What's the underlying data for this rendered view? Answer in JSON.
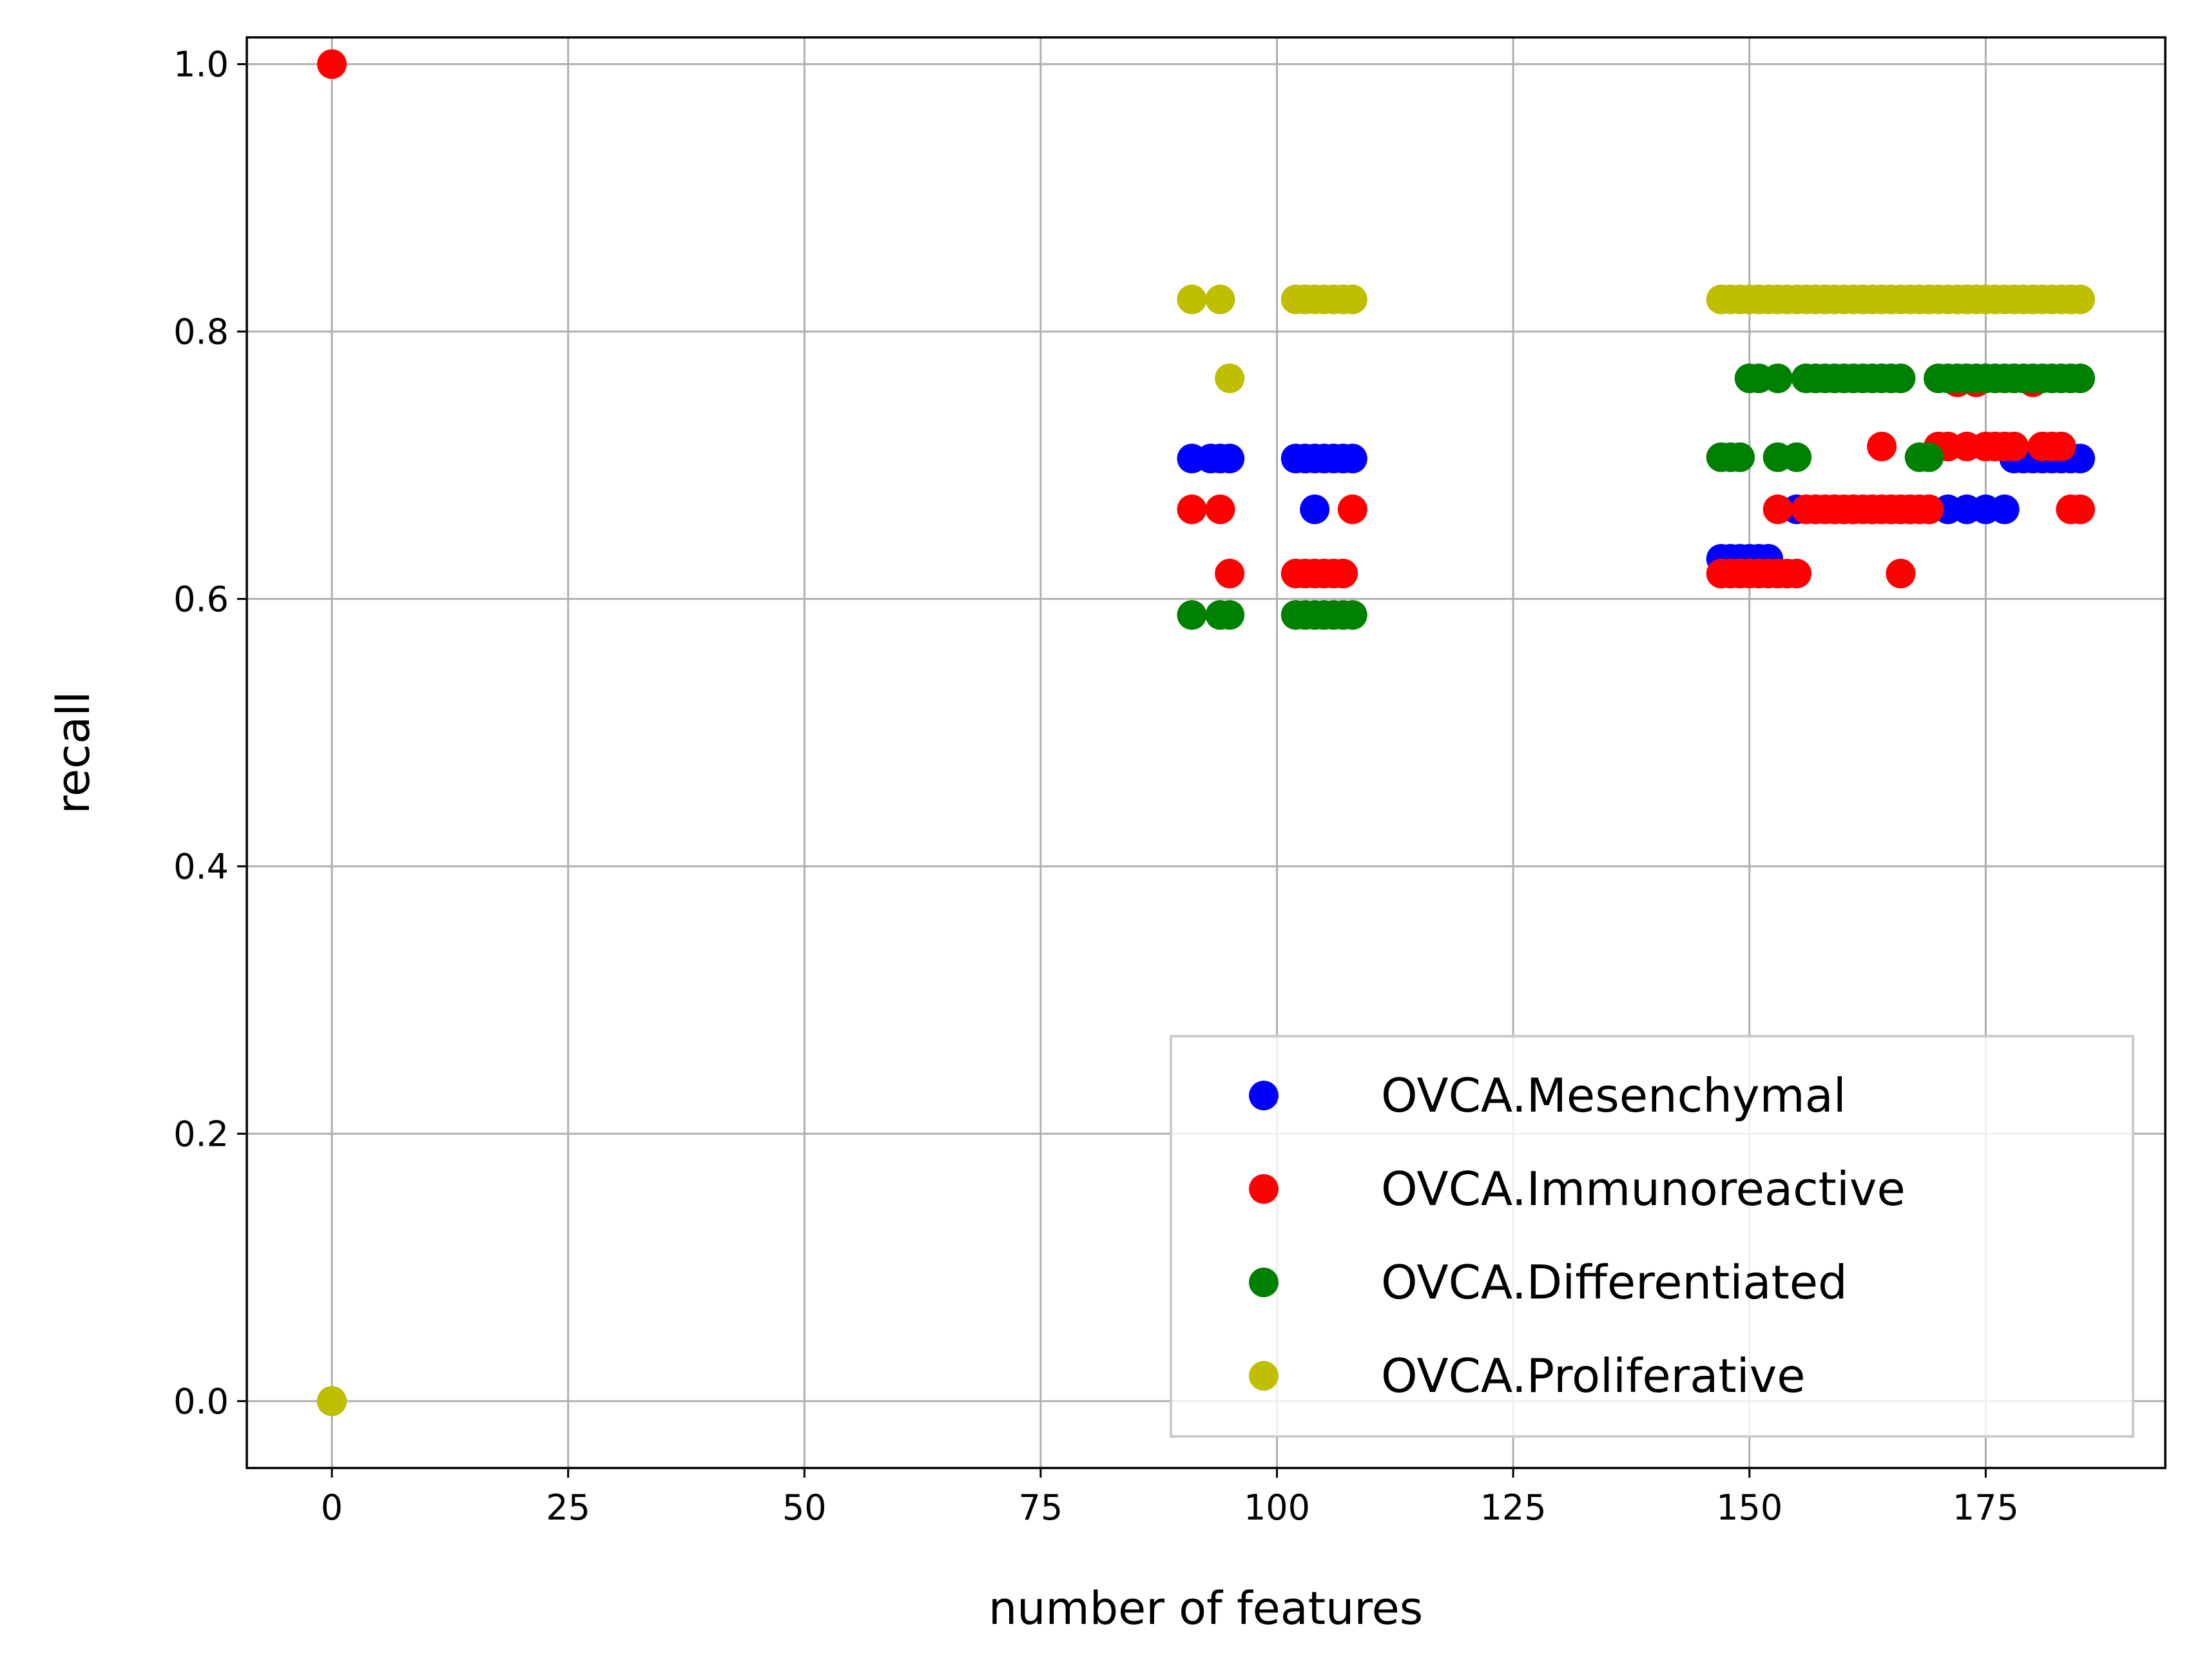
{
  "chart_data": {
    "type": "scatter",
    "title": "",
    "xlabel": "number of features",
    "ylabel": "recall",
    "xlim": [
      -9,
      194
    ],
    "ylim": [
      -0.05,
      1.02
    ],
    "xticks": [
      0,
      25,
      50,
      75,
      100,
      125,
      150,
      175
    ],
    "yticks": [
      0.0,
      0.2,
      0.4,
      0.6,
      0.8,
      1.0
    ],
    "xtick_labels": [
      "0",
      "25",
      "50",
      "75",
      "100",
      "125",
      "150",
      "175"
    ],
    "ytick_labels": [
      "0.0",
      "0.2",
      "0.4",
      "0.6",
      "0.8",
      "1.0"
    ],
    "grid": true,
    "legend_position": "lower right",
    "series": [
      {
        "name": "OVCA.Mesenchymal",
        "color": "#0000ff",
        "points": [
          [
            0,
            0.0
          ],
          [
            91,
            0.705
          ],
          [
            93,
            0.705
          ],
          [
            94,
            0.705
          ],
          [
            95,
            0.705
          ],
          [
            102,
            0.705
          ],
          [
            103,
            0.705
          ],
          [
            104,
            0.705
          ],
          [
            105,
            0.705
          ],
          [
            106,
            0.705
          ],
          [
            107,
            0.705
          ],
          [
            108,
            0.705
          ],
          [
            104,
            0.667
          ],
          [
            147,
            0.63
          ],
          [
            148,
            0.63
          ],
          [
            149,
            0.63
          ],
          [
            150,
            0.63
          ],
          [
            151,
            0.63
          ],
          [
            152,
            0.63
          ],
          [
            155,
            0.667
          ],
          [
            157,
            0.667
          ],
          [
            159,
            0.667
          ],
          [
            161,
            0.667
          ],
          [
            163,
            0.667
          ],
          [
            165,
            0.667
          ],
          [
            167,
            0.667
          ],
          [
            169,
            0.667
          ],
          [
            171,
            0.667
          ],
          [
            173,
            0.667
          ],
          [
            175,
            0.667
          ],
          [
            177,
            0.667
          ],
          [
            178,
            0.705
          ],
          [
            179,
            0.705
          ],
          [
            180,
            0.705
          ],
          [
            181,
            0.705
          ],
          [
            182,
            0.705
          ],
          [
            183,
            0.705
          ],
          [
            184,
            0.705
          ],
          [
            185,
            0.705
          ]
        ]
      },
      {
        "name": "OVCA.Immunoreactive",
        "color": "#ff0000",
        "points": [
          [
            0,
            1.0
          ],
          [
            91,
            0.667
          ],
          [
            94,
            0.667
          ],
          [
            95,
            0.619
          ],
          [
            102,
            0.619
          ],
          [
            103,
            0.619
          ],
          [
            104,
            0.619
          ],
          [
            105,
            0.619
          ],
          [
            106,
            0.619
          ],
          [
            107,
            0.619
          ],
          [
            108,
            0.667
          ],
          [
            147,
            0.619
          ],
          [
            148,
            0.619
          ],
          [
            149,
            0.619
          ],
          [
            150,
            0.619
          ],
          [
            151,
            0.619
          ],
          [
            152,
            0.619
          ],
          [
            153,
            0.619
          ],
          [
            154,
            0.619
          ],
          [
            155,
            0.619
          ],
          [
            166,
            0.619
          ],
          [
            153,
            0.667
          ],
          [
            156,
            0.667
          ],
          [
            157,
            0.667
          ],
          [
            158,
            0.667
          ],
          [
            159,
            0.667
          ],
          [
            160,
            0.667
          ],
          [
            161,
            0.667
          ],
          [
            162,
            0.667
          ],
          [
            163,
            0.667
          ],
          [
            164,
            0.667
          ],
          [
            165,
            0.667
          ],
          [
            166,
            0.667
          ],
          [
            167,
            0.667
          ],
          [
            168,
            0.667
          ],
          [
            169,
            0.667
          ],
          [
            164,
            0.714
          ],
          [
            170,
            0.714
          ],
          [
            171,
            0.714
          ],
          [
            173,
            0.714
          ],
          [
            175,
            0.714
          ],
          [
            176,
            0.714
          ],
          [
            177,
            0.714
          ],
          [
            178,
            0.714
          ],
          [
            181,
            0.714
          ],
          [
            182,
            0.714
          ],
          [
            183,
            0.714
          ],
          [
            172,
            0.762
          ],
          [
            174,
            0.762
          ],
          [
            180,
            0.762
          ],
          [
            184,
            0.667
          ],
          [
            185,
            0.667
          ]
        ]
      },
      {
        "name": "OVCA.Differentiated",
        "color": "#008000",
        "points": [
          [
            0,
            0.0
          ],
          [
            91,
            0.588
          ],
          [
            94,
            0.588
          ],
          [
            95,
            0.588
          ],
          [
            102,
            0.588
          ],
          [
            103,
            0.588
          ],
          [
            104,
            0.588
          ],
          [
            105,
            0.588
          ],
          [
            106,
            0.588
          ],
          [
            107,
            0.588
          ],
          [
            108,
            0.588
          ],
          [
            147,
            0.706
          ],
          [
            148,
            0.706
          ],
          [
            149,
            0.706
          ],
          [
            153,
            0.706
          ],
          [
            155,
            0.706
          ],
          [
            168,
            0.706
          ],
          [
            169,
            0.706
          ],
          [
            150,
            0.765
          ],
          [
            151,
            0.765
          ],
          [
            153,
            0.765
          ],
          [
            156,
            0.765
          ],
          [
            157,
            0.765
          ],
          [
            158,
            0.765
          ],
          [
            159,
            0.765
          ],
          [
            160,
            0.765
          ],
          [
            161,
            0.765
          ],
          [
            162,
            0.765
          ],
          [
            163,
            0.765
          ],
          [
            164,
            0.765
          ],
          [
            165,
            0.765
          ],
          [
            166,
            0.765
          ],
          [
            170,
            0.765
          ],
          [
            171,
            0.765
          ],
          [
            172,
            0.765
          ],
          [
            173,
            0.765
          ],
          [
            174,
            0.765
          ],
          [
            175,
            0.765
          ],
          [
            176,
            0.765
          ],
          [
            177,
            0.765
          ],
          [
            178,
            0.765
          ],
          [
            179,
            0.765
          ],
          [
            180,
            0.765
          ],
          [
            181,
            0.765
          ],
          [
            182,
            0.765
          ],
          [
            183,
            0.765
          ],
          [
            184,
            0.765
          ],
          [
            185,
            0.765
          ]
        ]
      },
      {
        "name": "OVCA.Proliferative",
        "color": "#bfbf00",
        "points": [
          [
            0,
            0.0
          ],
          [
            91,
            0.824
          ],
          [
            94,
            0.824
          ],
          [
            95,
            0.765
          ],
          [
            102,
            0.824
          ],
          [
            103,
            0.824
          ],
          [
            104,
            0.824
          ],
          [
            105,
            0.824
          ],
          [
            106,
            0.824
          ],
          [
            107,
            0.824
          ],
          [
            108,
            0.824
          ],
          [
            147,
            0.824
          ],
          [
            148,
            0.824
          ],
          [
            149,
            0.824
          ],
          [
            150,
            0.824
          ],
          [
            151,
            0.824
          ],
          [
            152,
            0.824
          ],
          [
            153,
            0.824
          ],
          [
            154,
            0.824
          ],
          [
            155,
            0.824
          ],
          [
            156,
            0.824
          ],
          [
            157,
            0.824
          ],
          [
            158,
            0.824
          ],
          [
            159,
            0.824
          ],
          [
            160,
            0.824
          ],
          [
            161,
            0.824
          ],
          [
            162,
            0.824
          ],
          [
            163,
            0.824
          ],
          [
            164,
            0.824
          ],
          [
            165,
            0.824
          ],
          [
            166,
            0.824
          ],
          [
            167,
            0.824
          ],
          [
            168,
            0.824
          ],
          [
            169,
            0.824
          ],
          [
            170,
            0.824
          ],
          [
            171,
            0.824
          ],
          [
            172,
            0.824
          ],
          [
            173,
            0.824
          ],
          [
            174,
            0.824
          ],
          [
            175,
            0.824
          ],
          [
            176,
            0.824
          ],
          [
            177,
            0.824
          ],
          [
            178,
            0.824
          ],
          [
            179,
            0.824
          ],
          [
            180,
            0.824
          ],
          [
            181,
            0.824
          ],
          [
            182,
            0.824
          ],
          [
            183,
            0.824
          ],
          [
            184,
            0.824
          ],
          [
            185,
            0.824
          ]
        ]
      }
    ]
  }
}
